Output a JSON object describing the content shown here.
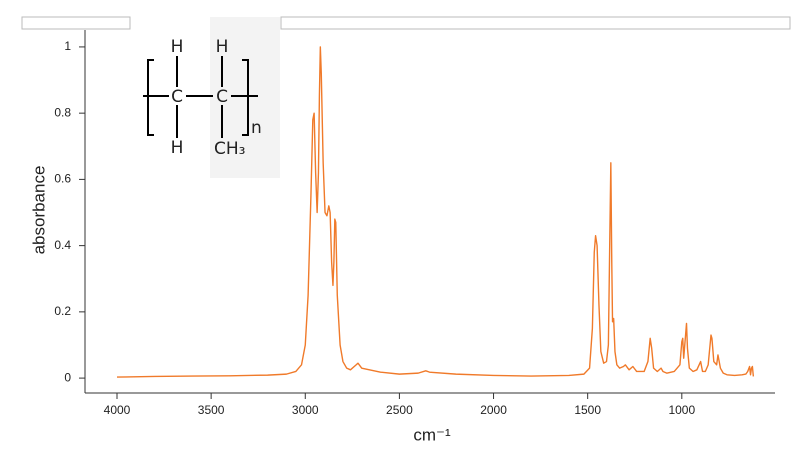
{
  "chart_data": {
    "type": "line",
    "x_label": "cm⁻¹",
    "y_label": "absorbance",
    "inset_labels": [
      "H",
      "H",
      "C",
      "C",
      "H",
      "CH₃",
      "n"
    ],
    "color": "#f07a2a",
    "xlim": [
      4170,
      505
    ],
    "ylim": [
      -0.045,
      1.036
    ],
    "xticks": [
      4000,
      3500,
      3000,
      2500,
      2000,
      1500,
      1000
    ],
    "yticks": [
      0,
      0.2,
      0.4,
      0.6,
      0.8,
      1
    ],
    "x": [
      4000,
      3800,
      3600,
      3400,
      3200,
      3100,
      3050,
      3020,
      3000,
      2985,
      2970,
      2960,
      2953,
      2945,
      2937,
      2930,
      2925,
      2920,
      2915,
      2905,
      2895,
      2885,
      2875,
      2868,
      2860,
      2853,
      2848,
      2843,
      2838,
      2830,
      2815,
      2800,
      2780,
      2760,
      2730,
      2720,
      2700,
      2600,
      2500,
      2400,
      2360,
      2340,
      2200,
      2000,
      1800,
      1600,
      1520,
      1490,
      1475,
      1465,
      1458,
      1450,
      1440,
      1430,
      1415,
      1400,
      1390,
      1383,
      1377,
      1372,
      1368,
      1362,
      1355,
      1345,
      1330,
      1310,
      1300,
      1280,
      1260,
      1240,
      1200,
      1180,
      1168,
      1160,
      1150,
      1130,
      1110,
      1100,
      1080,
      1040,
      1010,
      1000,
      995,
      990,
      980,
      975,
      970,
      960,
      940,
      920,
      900,
      890,
      875,
      860,
      845,
      840,
      830,
      815,
      808,
      795,
      780,
      760,
      720,
      680,
      660,
      650,
      640,
      635,
      630,
      625,
      620
    ],
    "values": [
      0.003,
      0.005,
      0.006,
      0.007,
      0.009,
      0.012,
      0.02,
      0.04,
      0.1,
      0.25,
      0.55,
      0.78,
      0.8,
      0.62,
      0.5,
      0.62,
      0.85,
      1.0,
      0.92,
      0.65,
      0.5,
      0.49,
      0.52,
      0.5,
      0.35,
      0.28,
      0.35,
      0.48,
      0.47,
      0.25,
      0.1,
      0.05,
      0.03,
      0.025,
      0.04,
      0.045,
      0.03,
      0.018,
      0.012,
      0.015,
      0.022,
      0.018,
      0.012,
      0.008,
      0.006,
      0.008,
      0.012,
      0.03,
      0.15,
      0.38,
      0.43,
      0.4,
      0.22,
      0.08,
      0.045,
      0.05,
      0.1,
      0.4,
      0.65,
      0.35,
      0.17,
      0.18,
      0.08,
      0.04,
      0.03,
      0.035,
      0.04,
      0.025,
      0.035,
      0.02,
      0.02,
      0.05,
      0.12,
      0.09,
      0.03,
      0.02,
      0.03,
      0.02,
      0.015,
      0.02,
      0.04,
      0.11,
      0.12,
      0.06,
      0.13,
      0.165,
      0.09,
      0.03,
      0.02,
      0.025,
      0.05,
      0.02,
      0.02,
      0.04,
      0.13,
      0.12,
      0.05,
      0.04,
      0.07,
      0.03,
      0.015,
      0.01,
      0.008,
      0.01,
      0.012,
      0.02,
      0.035,
      0.01,
      0.03,
      0.035,
      0.005
    ]
  }
}
